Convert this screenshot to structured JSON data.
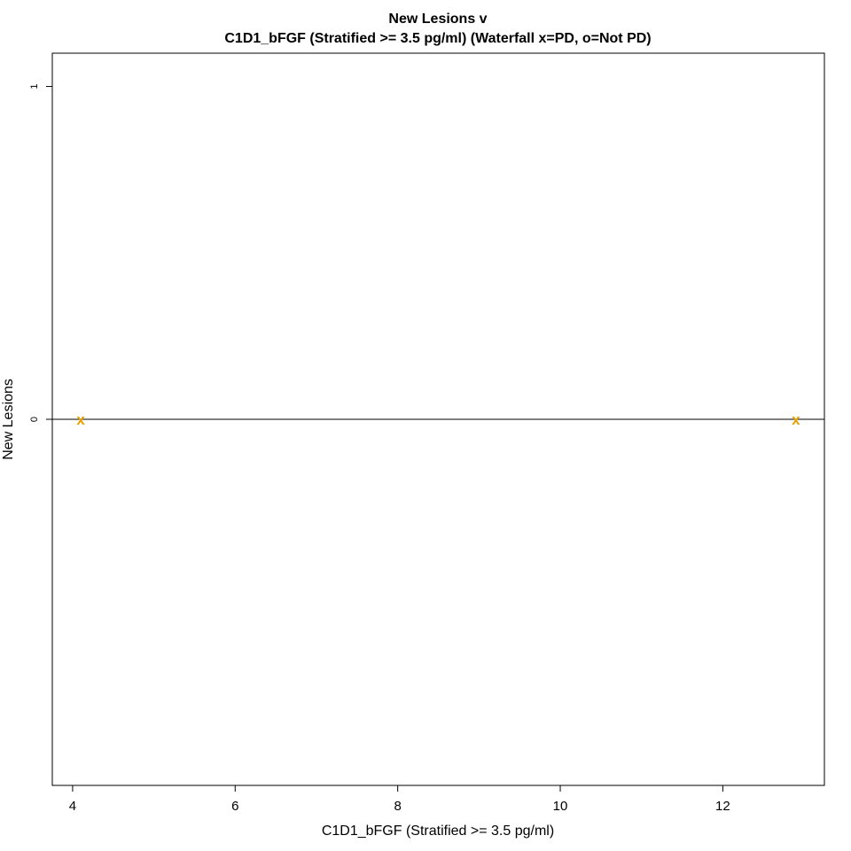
{
  "chart_data": {
    "type": "scatter",
    "title": "New Lesions v",
    "subtitle": "C1D1_bFGF (Stratified >= 3.5 pg/ml) (Waterfall x=PD, o=Not PD)",
    "xlabel": "C1D1_bFGF (Stratified >= 3.5 pg/ml)",
    "ylabel": "New Lesions",
    "xlim": [
      3.75,
      13.25
    ],
    "ylim": [
      -1.1,
      1.1
    ],
    "xticks": [
      4,
      6,
      8,
      10,
      12
    ],
    "yticks": [
      0,
      1
    ],
    "hline": 0,
    "grid": false,
    "legend": "none",
    "marker_color": "#E69F00",
    "points": [
      {
        "x": 4.1,
        "y": 0,
        "marker": "x",
        "label": "PD"
      },
      {
        "x": 12.9,
        "y": 0,
        "marker": "x",
        "label": "PD"
      }
    ]
  }
}
